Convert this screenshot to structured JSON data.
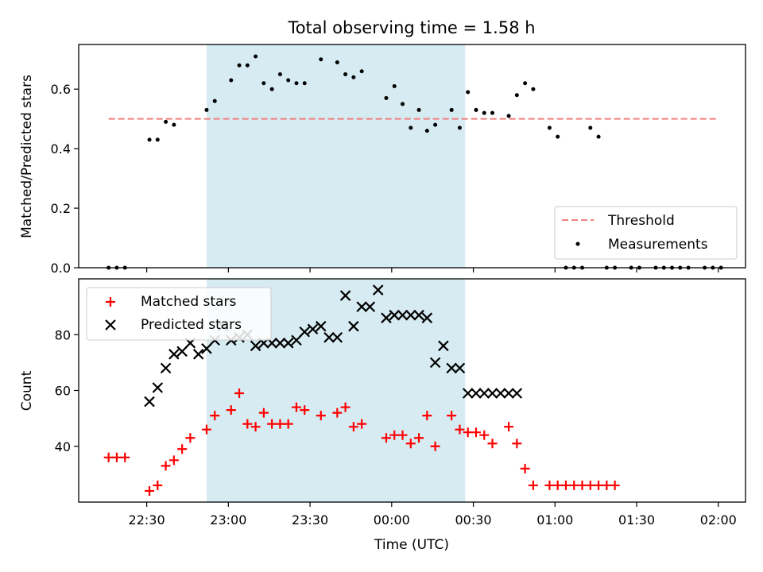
{
  "title": "Total observing time = 1.58 h",
  "xlabel": "Time (UTC)",
  "x_ticks": [
    "22:30",
    "23:00",
    "23:30",
    "00:00",
    "00:30",
    "01:00",
    "01:30",
    "02:00"
  ],
  "x_range": [
    "22:05",
    "02:10"
  ],
  "shaded_interval": [
    "22:52",
    "00:27"
  ],
  "colors": {
    "threshold": "#f08080",
    "measurements": "#000000",
    "matched": "#ff0000",
    "predicted": "#000000",
    "shade": "#add8e6"
  },
  "chart_data": [
    {
      "type": "scatter",
      "panel": "top",
      "xlabel": "",
      "ylabel": "Matched/Predicted stars",
      "ylim": [
        0,
        0.75
      ],
      "y_ticks": [
        "0.0",
        "0.2",
        "0.4",
        "0.6"
      ],
      "grid": false,
      "legend": "lower-right",
      "threshold": {
        "name": "Threshold",
        "value": 0.5,
        "x_range": [
          "22:16",
          "02:00"
        ]
      },
      "series": [
        {
          "name": "Measurements",
          "x": [
            "22:16",
            "22:19",
            "22:22",
            "22:31",
            "22:34",
            "22:37",
            "22:40",
            "22:52",
            "22:55",
            "23:01",
            "23:04",
            "23:07",
            "23:10",
            "23:13",
            "23:16",
            "23:19",
            "23:22",
            "23:25",
            "23:28",
            "23:34",
            "23:40",
            "23:43",
            "23:46",
            "23:49",
            "23:58",
            "24:01",
            "24:04",
            "24:07",
            "24:10",
            "24:13",
            "24:16",
            "24:22",
            "24:25",
            "24:28",
            "24:31",
            "24:34",
            "24:37",
            "24:43",
            "24:46",
            "24:49",
            "24:52",
            "24:58",
            "25:01",
            "25:04",
            "25:07",
            "25:10",
            "25:13",
            "25:16",
            "25:19",
            "25:22",
            "25:28",
            "25:31",
            "25:37",
            "25:40",
            "25:43",
            "25:46",
            "25:49",
            "25:55",
            "25:58",
            "26:01"
          ],
          "values": [
            0,
            0,
            0,
            0.43,
            0.43,
            0.49,
            0.48,
            0.53,
            0.56,
            0.63,
            0.68,
            0.68,
            0.71,
            0.62,
            0.6,
            0.65,
            0.63,
            0.62,
            0.62,
            0.7,
            0.69,
            0.65,
            0.64,
            0.66,
            0.57,
            0.61,
            0.55,
            0.47,
            0.53,
            0.46,
            0.48,
            0.53,
            0.47,
            0.59,
            0.53,
            0.52,
            0.52,
            0.51,
            0.58,
            0.62,
            0.6,
            0.47,
            0.44,
            0,
            0,
            0,
            0.47,
            0.44,
            0,
            0,
            0,
            0,
            0,
            0,
            0,
            0,
            0,
            0,
            0,
            0
          ]
        }
      ]
    },
    {
      "type": "scatter",
      "panel": "bottom",
      "xlabel": "Time (UTC)",
      "ylabel": "Count",
      "ylim": [
        20,
        100
      ],
      "y_ticks": [
        "40",
        "60",
        "80"
      ],
      "grid": false,
      "legend": "upper-left",
      "series": [
        {
          "name": "Matched stars",
          "marker": "plus",
          "x": [
            "22:16",
            "22:19",
            "22:22",
            "22:31",
            "22:34",
            "22:37",
            "22:40",
            "22:43",
            "22:46",
            "22:52",
            "22:55",
            "23:01",
            "23:04",
            "23:07",
            "23:10",
            "23:13",
            "23:16",
            "23:19",
            "23:22",
            "23:25",
            "23:28",
            "23:34",
            "23:40",
            "23:43",
            "23:46",
            "23:49",
            "23:58",
            "24:01",
            "24:04",
            "24:07",
            "24:10",
            "24:13",
            "24:16",
            "24:22",
            "24:25",
            "24:28",
            "24:31",
            "24:34",
            "24:37",
            "24:43",
            "24:46",
            "24:49",
            "24:52",
            "24:58",
            "25:01",
            "25:04",
            "25:07",
            "25:10",
            "25:13",
            "25:16",
            "25:19",
            "25:22"
          ],
          "values": [
            36,
            36,
            36,
            24,
            26,
            33,
            35,
            39,
            43,
            46,
            51,
            53,
            59,
            48,
            47,
            52,
            48,
            48,
            48,
            54,
            53,
            51,
            52,
            54,
            47,
            48,
            43,
            44,
            44,
            41,
            43,
            51,
            40,
            51,
            46,
            45,
            45,
            44,
            41,
            47,
            41,
            32,
            26,
            26,
            26,
            26,
            26,
            26,
            26,
            26,
            26,
            26
          ]
        },
        {
          "name": "Predicted stars",
          "marker": "x",
          "x": [
            "22:31",
            "22:34",
            "22:37",
            "22:40",
            "22:43",
            "22:46",
            "22:49",
            "22:52",
            "22:55",
            "22:58",
            "23:01",
            "23:04",
            "23:07",
            "23:10",
            "23:13",
            "23:16",
            "23:19",
            "23:22",
            "23:25",
            "23:28",
            "23:31",
            "23:34",
            "23:37",
            "23:40",
            "23:43",
            "23:46",
            "23:49",
            "23:52",
            "23:55",
            "23:58",
            "24:01",
            "24:04",
            "24:07",
            "24:10",
            "24:13",
            "24:16",
            "24:19",
            "24:22",
            "24:25",
            "24:28",
            "24:31",
            "24:34",
            "24:37",
            "24:40",
            "24:43",
            "24:46"
          ],
          "values": [
            56,
            61,
            68,
            73,
            74,
            77,
            73,
            75,
            78,
            83,
            78,
            79,
            80,
            76,
            77,
            77,
            77,
            77,
            78,
            81,
            82,
            83,
            79,
            79,
            94,
            83,
            90,
            90,
            96,
            86,
            87,
            87,
            87,
            87,
            86,
            70,
            76,
            68,
            68,
            59,
            59,
            59,
            59,
            59,
            59,
            59
          ]
        }
      ]
    }
  ]
}
